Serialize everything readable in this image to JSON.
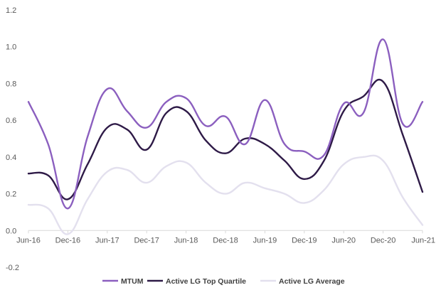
{
  "chart_data": {
    "type": "line",
    "title": "",
    "xlabel": "",
    "ylabel": "",
    "x": [
      "Jun-16",
      "Sep-16",
      "Dec-16",
      "Mar-17",
      "Jun-17",
      "Sep-17",
      "Dec-17",
      "Mar-18",
      "Jun-18",
      "Sep-18",
      "Dec-18",
      "Mar-19",
      "Jun-19",
      "Sep-19",
      "Dec-19",
      "Mar-20",
      "Jun-20",
      "Sep-20",
      "Dec-20",
      "Mar-21",
      "Jun-21"
    ],
    "x_tick_labels": [
      "Jun-16",
      "Dec-16",
      "Jun-17",
      "Dec-17",
      "Jun-18",
      "Dec-18",
      "Jun-19",
      "Dec-19",
      "Jun-20",
      "Dec-20",
      "Jun-21"
    ],
    "ylim": [
      -0.2,
      1.2
    ],
    "y_ticks": [
      "-0.2",
      "0.0",
      "0.2",
      "0.4",
      "0.6",
      "0.8",
      "1.0",
      "1.2"
    ],
    "grid": false,
    "legend_position": "bottom",
    "series": [
      {
        "name": "MTUM",
        "color": "#8b5fbf",
        "values": [
          0.7,
          0.47,
          0.12,
          0.51,
          0.77,
          0.65,
          0.56,
          0.7,
          0.72,
          0.57,
          0.62,
          0.47,
          0.71,
          0.47,
          0.43,
          0.41,
          0.69,
          0.64,
          1.04,
          0.58,
          0.7
        ]
      },
      {
        "name": "Active LG Top Quartile",
        "color": "#2e1a47",
        "values": [
          0.31,
          0.3,
          0.17,
          0.36,
          0.56,
          0.55,
          0.44,
          0.64,
          0.65,
          0.49,
          0.42,
          0.5,
          0.47,
          0.38,
          0.28,
          0.38,
          0.65,
          0.73,
          0.81,
          0.52,
          0.21
        ]
      },
      {
        "name": "Active LG Average",
        "color": "#e3e0ee",
        "values": [
          0.14,
          0.12,
          -0.02,
          0.17,
          0.32,
          0.33,
          0.26,
          0.35,
          0.37,
          0.26,
          0.2,
          0.26,
          0.23,
          0.2,
          0.15,
          0.22,
          0.36,
          0.4,
          0.38,
          0.18,
          0.03
        ]
      }
    ]
  }
}
